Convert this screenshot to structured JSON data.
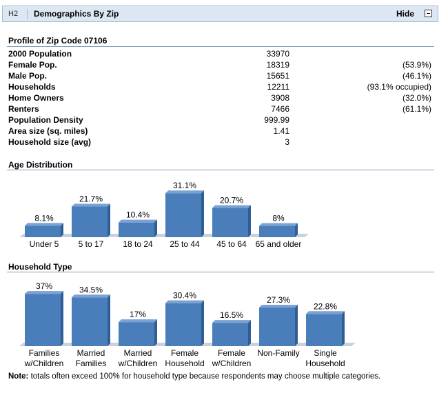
{
  "header": {
    "tag": "H2",
    "title": "Demographics By Zip",
    "hide_label": "Hide"
  },
  "profile": {
    "title": "Profile of Zip Code 07106",
    "rows": [
      {
        "label": "2000 Population",
        "value": "33970",
        "extra": ""
      },
      {
        "label": "Female Pop.",
        "value": "18319",
        "extra": "(53.9%)"
      },
      {
        "label": "Male Pop.",
        "value": "15651",
        "extra": "(46.1%)"
      },
      {
        "label": "Households",
        "value": "12211",
        "extra": "(93.1% occupied)"
      },
      {
        "label": "Home Owners",
        "value": "3908",
        "extra": "(32.0%)"
      },
      {
        "label": "Renters",
        "value": "7466",
        "extra": "(61.1%)"
      },
      {
        "label": "Population Density",
        "value": "999.99",
        "extra": ""
      },
      {
        "label": "Area size (sq. miles)",
        "value": "1.41",
        "extra": ""
      },
      {
        "label": "Household size (avg)",
        "value": "3",
        "extra": ""
      }
    ]
  },
  "age_title": "Age Distribution",
  "household_title": "Household Type",
  "note": {
    "prefix": "Note:",
    "text": " totals often exceed 100% for household type because respondents may choose multiple categories."
  },
  "colors": {
    "bar_front": "#4a7ebb",
    "bar_side": "#2f5e94",
    "bar_top": "#7aa2d4",
    "floor": "#c9d2dc",
    "rule": "#7f9db9"
  },
  "chart_data": [
    {
      "type": "bar",
      "title": "",
      "categories": [
        [
          "Under 5"
        ],
        [
          "5 to 17"
        ],
        [
          "18 to 24"
        ],
        [
          "25 to 44"
        ],
        [
          "45 to 64"
        ],
        [
          "65 and older"
        ]
      ],
      "values": [
        8.1,
        21.7,
        10.4,
        31.1,
        20.7,
        8
      ],
      "labels": [
        "8.1%",
        "21.7%",
        "10.4%",
        "31.1%",
        "20.7%",
        "8%"
      ]
    },
    {
      "type": "bar",
      "title": "",
      "categories": [
        [
          "Families",
          "w/Children"
        ],
        [
          "Married",
          "Families"
        ],
        [
          "Married",
          "w/Children"
        ],
        [
          "Female",
          "Household"
        ],
        [
          "Female",
          "w/Children"
        ],
        [
          "Non-Family"
        ],
        [
          "Single",
          "Household"
        ]
      ],
      "values": [
        37,
        34.5,
        17,
        30.4,
        16.5,
        27.3,
        22.8
      ],
      "labels": [
        "37%",
        "34.5%",
        "17%",
        "30.4%",
        "16.5%",
        "27.3%",
        "22.8%"
      ]
    }
  ]
}
